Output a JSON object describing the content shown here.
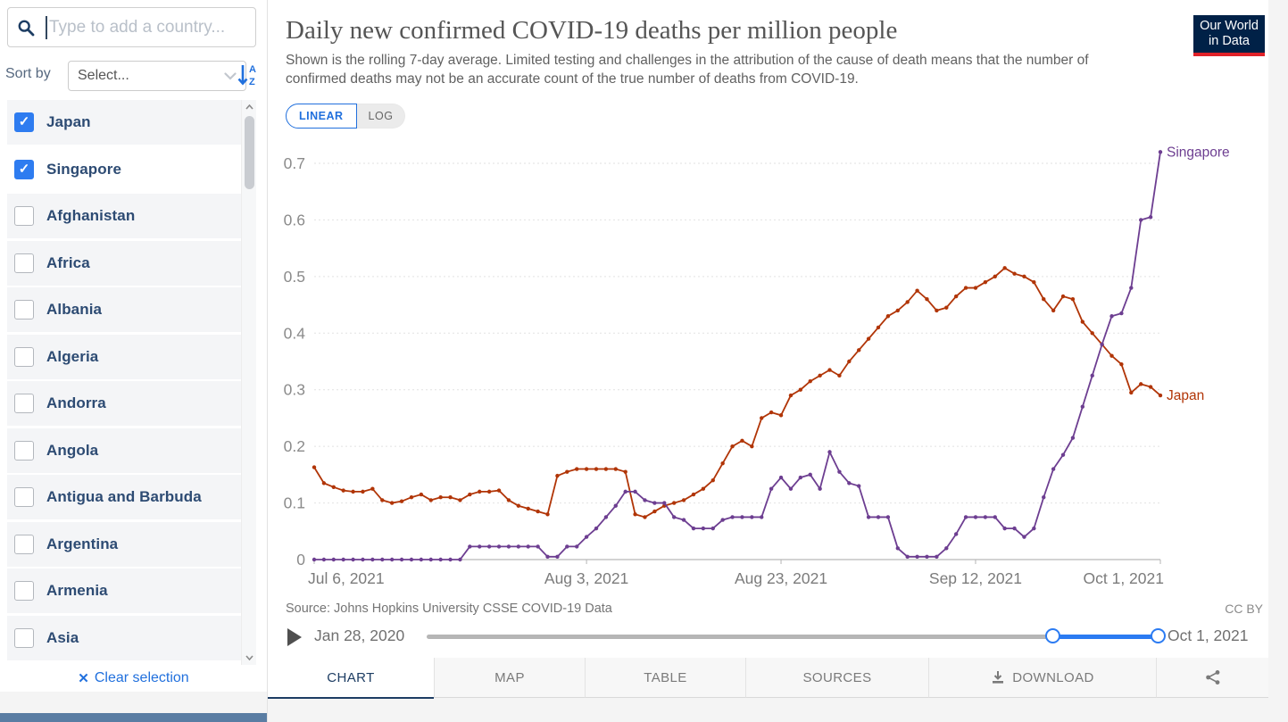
{
  "sidebar": {
    "search_placeholder": "Type to add a country...",
    "sort_by_label": "Sort by",
    "sort_select_value": "Select...",
    "countries": [
      {
        "name": "Japan",
        "checked": true
      },
      {
        "name": "Singapore",
        "checked": true,
        "hovered": true
      },
      {
        "name": "Afghanistan",
        "checked": false
      },
      {
        "name": "Africa",
        "checked": false
      },
      {
        "name": "Albania",
        "checked": false
      },
      {
        "name": "Algeria",
        "checked": false
      },
      {
        "name": "Andorra",
        "checked": false
      },
      {
        "name": "Angola",
        "checked": false
      },
      {
        "name": "Antigua and Barbuda",
        "checked": false
      },
      {
        "name": "Argentina",
        "checked": false
      },
      {
        "name": "Armenia",
        "checked": false
      },
      {
        "name": "Asia",
        "checked": false
      }
    ],
    "clear_selection_label": "Clear selection"
  },
  "header": {
    "title": "Daily new confirmed COVID-19 deaths per million people",
    "subtitle": "Shown is the rolling 7-day average. Limited testing and challenges in the attribution of the cause of death means that the number of confirmed deaths may not be an accurate count of the true number of deaths from COVID-19.",
    "logo": {
      "line1": "Our World",
      "line2": "in Data"
    }
  },
  "scale_toggle": {
    "linear_label": "LINEAR",
    "log_label": "LOG",
    "active": "LINEAR"
  },
  "chart_data": {
    "type": "line",
    "title": "Daily new confirmed COVID-19 deaths per million people",
    "ylabel": "",
    "xlabel": "",
    "ylim": [
      0,
      0.72
    ],
    "y_max_gridline": 0.7,
    "y_ticks": [
      0,
      0.1,
      0.2,
      0.3,
      0.4,
      0.5,
      0.6,
      0.7
    ],
    "grid": "dashed-horizontal",
    "legend_position": "line-end-labels",
    "x_ticks": [
      {
        "index": 0,
        "label": "Jul 6, 2021",
        "anchor": "start"
      },
      {
        "index": 28,
        "label": "Aug 3, 2021",
        "anchor": "middle"
      },
      {
        "index": 48,
        "label": "Aug 23, 2021",
        "anchor": "middle"
      },
      {
        "index": 68,
        "label": "Sep 12, 2021",
        "anchor": "middle"
      },
      {
        "index": 87,
        "label": "Oct 1, 2021",
        "anchor": "end"
      }
    ],
    "x_range": [
      "Jul 6, 2021",
      "Oct 1, 2021"
    ],
    "x_frequency": "daily",
    "series": [
      {
        "name": "Japan",
        "color": "#b13507",
        "values": [
          0.163,
          0.135,
          0.128,
          0.122,
          0.12,
          0.12,
          0.125,
          0.105,
          0.1,
          0.103,
          0.11,
          0.115,
          0.105,
          0.11,
          0.11,
          0.105,
          0.115,
          0.12,
          0.12,
          0.122,
          0.105,
          0.095,
          0.09,
          0.085,
          0.08,
          0.148,
          0.155,
          0.16,
          0.16,
          0.16,
          0.16,
          0.16,
          0.155,
          0.08,
          0.075,
          0.085,
          0.095,
          0.1,
          0.105,
          0.115,
          0.125,
          0.14,
          0.17,
          0.2,
          0.21,
          0.2,
          0.25,
          0.26,
          0.255,
          0.29,
          0.3,
          0.315,
          0.325,
          0.335,
          0.325,
          0.35,
          0.37,
          0.39,
          0.41,
          0.43,
          0.44,
          0.455,
          0.475,
          0.46,
          0.44,
          0.445,
          0.465,
          0.48,
          0.48,
          0.49,
          0.5,
          0.515,
          0.505,
          0.5,
          0.49,
          0.46,
          0.44,
          0.465,
          0.46,
          0.42,
          0.4,
          0.38,
          0.36,
          0.345,
          0.295,
          0.31,
          0.305,
          0.29
        ]
      },
      {
        "name": "Singapore",
        "color": "#6d3e91",
        "values": [
          0,
          0,
          0,
          0,
          0,
          0,
          0,
          0,
          0,
          0,
          0,
          0,
          0,
          0,
          0,
          0,
          0.023,
          0.023,
          0.023,
          0.023,
          0.023,
          0.023,
          0.023,
          0.023,
          0.005,
          0.005,
          0.023,
          0.023,
          0.04,
          0.055,
          0.075,
          0.095,
          0.12,
          0.12,
          0.105,
          0.1,
          0.1,
          0.075,
          0.07,
          0.055,
          0.055,
          0.055,
          0.07,
          0.075,
          0.075,
          0.075,
          0.075,
          0.125,
          0.145,
          0.125,
          0.145,
          0.15,
          0.125,
          0.19,
          0.155,
          0.135,
          0.13,
          0.075,
          0.075,
          0.075,
          0.02,
          0.005,
          0.005,
          0.005,
          0.005,
          0.02,
          0.045,
          0.075,
          0.075,
          0.075,
          0.075,
          0.055,
          0.055,
          0.04,
          0.055,
          0.11,
          0.16,
          0.185,
          0.215,
          0.27,
          0.325,
          0.38,
          0.43,
          0.435,
          0.48,
          0.6,
          0.605,
          0.72
        ]
      }
    ]
  },
  "footer": {
    "source": "Source: Johns Hopkins University CSSE COVID-19 Data",
    "license": "CC BY"
  },
  "timeline": {
    "start_label": "Jan 28, 2020",
    "end_label": "Oct 1, 2021"
  },
  "tabs": {
    "items": [
      {
        "label": "CHART",
        "active": true
      },
      {
        "label": "MAP",
        "active": false
      },
      {
        "label": "TABLE",
        "active": false
      },
      {
        "label": "SOURCES",
        "active": false
      },
      {
        "label": "DOWNLOAD",
        "active": false,
        "icon": "download-icon"
      }
    ],
    "share_icon": "share-icon"
  },
  "icons": {
    "search": "search-icon",
    "sort": "sort-alpha-descending-icon",
    "select_chevron": "chevron-down-icon",
    "clear": "close-icon",
    "play": "play-icon",
    "download": "download-icon",
    "share": "share-icon",
    "scroll_up": "chevron-up-icon",
    "scroll_down": "chevron-down-icon"
  },
  "colors": {
    "accent_blue": "#2e7cf0",
    "link_blue": "#2170dd",
    "navy_text": "#2d4b73",
    "tab_active_navy": "#1d3d63",
    "japan_red": "#b13507",
    "singapore_purple": "#6d3e91",
    "logo_bg": "#002147",
    "logo_red": "#e02128",
    "slider_blue": "#2b7bf2"
  }
}
